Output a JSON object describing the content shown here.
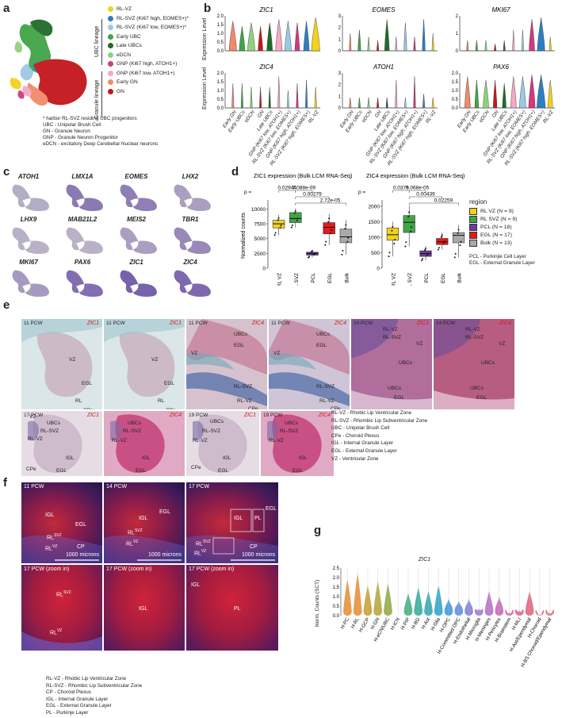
{
  "panels": {
    "a": "a",
    "b": "b",
    "c": "c",
    "d": "d",
    "e": "e",
    "f": "f",
    "g": "g"
  },
  "panel_a": {
    "lineage_ubc": "UBC lineage",
    "lineage_granule": "Granule lineage",
    "legend": [
      {
        "label": "RL-VZ",
        "color": "#f2d21b"
      },
      {
        "label": "RL-SVZ (Ki67 high, EOMES+)*",
        "color": "#2e7fbf"
      },
      {
        "label": "RL-SVZ (Ki67 low, EOMES+)*",
        "color": "#9cc8e6"
      },
      {
        "label": "Early UBC",
        "color": "#41a447"
      },
      {
        "label": "Late UBCs",
        "color": "#1e6b2a"
      },
      {
        "label": "eDCN",
        "color": "#8fd17e"
      },
      {
        "label": "GNP (Ki67 high, ATOH1+)",
        "color": "#d23a7a"
      },
      {
        "label": "GNP (Ki67 low, ATOH1+)",
        "color": "#f3a9c4"
      },
      {
        "label": "Early GN",
        "color": "#f08a6a"
      },
      {
        "label": "GN",
        "color": "#c4161c"
      }
    ],
    "notes": [
      "* harbor RL-SVZ residing UBC progenitors",
      "UBC - Unipolar Brush Cell",
      "GN - Granule Neuron",
      "GNP - Granule  Neuron Progenitor",
      "eDCN - excitatory Deep Cerebellar Nuclear neurons"
    ]
  },
  "panel_b": {
    "ylabel": "Expression Level",
    "genes": [
      "ZIC1",
      "EOMES",
      "MKI67",
      "ZIC4",
      "ATOH1",
      "PAX6"
    ],
    "y_ticks": {
      "ZIC1": [
        "2.0",
        "1.5",
        "1.0",
        "0.5",
        "0.0"
      ],
      "EOMES": [
        "3",
        "2",
        "1",
        "0"
      ],
      "MKI67": [
        "2",
        "1",
        "0"
      ],
      "ZIC4": [
        "2.0",
        "1.5",
        "1.0",
        "0.5",
        "0.0"
      ],
      "ATOH1": [
        "3",
        "2",
        "1",
        "0"
      ],
      "PAX6": [
        "2.0",
        "1.5",
        "1.0",
        "0.5",
        "0.0"
      ]
    },
    "categories": [
      "Early GN",
      "Early UBCs",
      "eDCN",
      "GN",
      "Late UBCs",
      "GNP (Ki67 low, ATOH1+)",
      "RL-SVZ (Ki67 low, EOMES+)",
      "GNP (Ki67 high, ATOH1+)",
      "RL-SVZ (Ki67 high, EOMES+)",
      "RL-VZ"
    ],
    "category_colors": [
      "#f08a6a",
      "#41a447",
      "#8fd17e",
      "#c4161c",
      "#1e6b2a",
      "#f3a9c4",
      "#9cc8e6",
      "#d23a7a",
      "#2e7fbf",
      "#f2d21b"
    ]
  },
  "panel_c": {
    "genes": [
      "ATOH1",
      "LMX1A",
      "EOMES",
      "LHX2",
      "LHX9",
      "MAB21L2",
      "MEIS2",
      "TBR1",
      "MKI67",
      "PAX6",
      "ZIC1",
      "ZIC4"
    ]
  },
  "chart_data": [
    {
      "type": "box",
      "title": "ZIC1 expression (Bulk LCM RNA-Seq)",
      "ylabel": "Normalized counts",
      "ylim": [
        0,
        11000
      ],
      "y_ticks": [
        "10000",
        "7500",
        "5000",
        "2500",
        "0"
      ],
      "categories": [
        "RL VZ",
        "RL SVZ",
        "PCL",
        "EGL",
        "Bulk"
      ],
      "colors": [
        "#f2d21b",
        "#41a447",
        "#6a3d9a",
        "#e31a1c",
        "#aaaaaa"
      ],
      "boxes": [
        {
          "q1": 6800,
          "median": 7500,
          "q3": 8100,
          "min": 5600,
          "max": 9000
        },
        {
          "q1": 7700,
          "median": 8400,
          "q3": 9400,
          "min": 6900,
          "max": 10100
        },
        {
          "q1": 2200,
          "median": 2500,
          "q3": 2700,
          "min": 1800,
          "max": 3100
        },
        {
          "q1": 5800,
          "median": 6900,
          "q3": 7700,
          "min": 3900,
          "max": 9200
        },
        {
          "q1": 4300,
          "median": 5300,
          "q3": 6600,
          "min": 2300,
          "max": 8200
        }
      ],
      "pvalues": [
        "p =",
        "0.02944",
        "7.088e-09",
        "0.00279",
        "2.72e-05"
      ]
    },
    {
      "type": "box",
      "title": "ZIC4 expression (Bulk LCM RNA-Seq)",
      "ylim": [
        0,
        2100
      ],
      "y_ticks": [
        "2000",
        "1500",
        "1000",
        "500",
        "0"
      ],
      "categories": [
        "RL VZ",
        "RL SVZ",
        "PCL",
        "EGL",
        "Bulk"
      ],
      "colors": [
        "#f2d21b",
        "#41a447",
        "#6a3d9a",
        "#e31a1c",
        "#aaaaaa"
      ],
      "boxes": [
        {
          "q1": 900,
          "median": 1080,
          "q3": 1300,
          "min": 380,
          "max": 1500
        },
        {
          "q1": 1150,
          "median": 1480,
          "q3": 1700,
          "min": 700,
          "max": 2000
        },
        {
          "q1": 380,
          "median": 470,
          "q3": 560,
          "min": 250,
          "max": 700
        },
        {
          "q1": 760,
          "median": 850,
          "q3": 960,
          "min": 600,
          "max": 1150
        },
        {
          "q1": 820,
          "median": 1060,
          "q3": 1150,
          "min": 350,
          "max": 1400
        }
      ],
      "pvalues": [
        "p =",
        "0.0376",
        "9.068e-05",
        "0.00439",
        "0.02259"
      ]
    }
  ],
  "panel_d_legend": {
    "title": "region",
    "items": [
      {
        "label": "RL VZ (N = 9)",
        "color": "#f2d21b"
      },
      {
        "label": "RL SVZ (N = 9)",
        "color": "#41a447"
      },
      {
        "label": "PCL (N = 18)",
        "color": "#6a3d9a"
      },
      {
        "label": "EGL (N = 17)",
        "color": "#e31a1c"
      },
      {
        "label": "Bulk (N = 13)",
        "color": "#aaaaaa"
      }
    ],
    "notes": [
      "PCL - Purkinjie Cell Layer",
      "EGL - External Granule Layer"
    ]
  },
  "panel_e": {
    "row1": [
      {
        "pcw": "11 PCW",
        "gene": "ZIC1",
        "labels": [
          "VZ",
          "EGL",
          "RL",
          "CPe"
        ]
      },
      {
        "pcw": "11 PCW",
        "gene": "ZIC1",
        "labels": [
          "VZ",
          "EGL",
          "RL",
          "CPe"
        ]
      },
      {
        "pcw": "11 PCW",
        "gene": "ZIC4",
        "labels": [
          "UBCs",
          "EGL",
          "VZ",
          "RL-SVZ",
          "RL-VZ",
          "CPe"
        ]
      },
      {
        "pcw": "11 PCW",
        "gene": "ZIC4",
        "labels": [
          "UBCs",
          "EGL",
          "VZ",
          "RL-SVZ",
          "RL-VZ",
          "CPe"
        ]
      },
      {
        "pcw": "14 PCW",
        "gene": "ZIC1",
        "labels": [
          "RL-VZ",
          "RL-SVZ",
          "VZ",
          "UBCs",
          "UBCs",
          "EGL"
        ]
      },
      {
        "pcw": "14 PCW",
        "gene": "ZIC4",
        "labels": [
          "RL-VZ",
          "RL-SVZ",
          "VZ",
          "UBCs",
          "UBCs",
          "EGL"
        ]
      }
    ],
    "row2": [
      {
        "pcw": "17 PCW",
        "gene": "ZIC1",
        "labels": [
          "VZ",
          "UBCs",
          "RL-SVZ",
          "RL-VZ",
          "IGL",
          "CPe",
          "EGL"
        ]
      },
      {
        "pcw": "",
        "gene": "ZIC4",
        "labels": [
          "UBCs",
          "RL-SVZ",
          "RL-VZ",
          "IGL",
          "EGL"
        ]
      },
      {
        "pcw": "19 PCW",
        "gene": "ZIC1",
        "labels": [
          "UBCs",
          "RL-SVZ",
          "RL-VZ",
          "IGL",
          "CPe",
          "EGL"
        ]
      },
      {
        "pcw": "19 PCW",
        "gene": "ZIC4",
        "labels": [
          "UBCs",
          "RL-SVZ",
          "RL-VZ",
          "IGL",
          "EGL"
        ]
      }
    ],
    "notes": [
      "RL-VZ - Rhobic Lip Ventricular Zone",
      "RL-SVZ - Rhombic Lip Subventricular Zone",
      "UBC - Unipolar Brush Cell",
      "CPe - Choroid Plexus",
      "IGL - Internal Granule Layer",
      "EGL - External Granule Layer",
      "VZ - Ventricular Zone"
    ]
  },
  "panel_f": {
    "top": [
      {
        "pcw": "11 PCW",
        "scale": "1000 microns"
      },
      {
        "pcw": "14 PCW",
        "scale": "1000 microns"
      },
      {
        "pcw": "17 PCW",
        "scale": "1000 microns"
      }
    ],
    "bottom": [
      {
        "pcw": "17 PCW (zoom in)"
      },
      {
        "pcw": "17 PCW (zoom in)"
      },
      {
        "pcw": "17 PCW (zoom in)"
      }
    ],
    "region_labels": {
      "igl": "IGL",
      "egl": "EGL",
      "cp": "CP",
      "pl": "PL",
      "rl": "RL",
      "svz": "SVZ",
      "vz": "VZ"
    },
    "notes": [
      "RL-VZ - Rhobic Lip Ventricular Zone",
      "RL-SVZ - Rhombic Lip Subventricular Zone",
      "CP - Choroid Plexus",
      "IGL - Internal Granule Layer",
      "EGL - External Granule Layer",
      "PL - Purkinje Layer"
    ]
  },
  "panel_g": {
    "title": "ZIC1",
    "ylabel": "Norm. Counts (SCT)",
    "y_ticks": [
      "2.5",
      "2.0",
      "1.5",
      "1.0",
      "0.5",
      "0.0"
    ],
    "categories": [
      "H-PC",
      "H-RL",
      "H-GCP",
      "H-GN",
      "H-eCN/UBC",
      "H-iCN",
      "H-PIP",
      "H-BG",
      "H-Ast",
      "H-Glia",
      "H-OPC",
      "H-Committed OPC",
      "H-Endothelial",
      "H-Microglia",
      "H-Meninges",
      "H-Pericytes",
      "H-Brainstem",
      "H-MLI",
      "H-Ast/Ependymal",
      "H-Choroid",
      "H-BS Choroid/Ependymal"
    ],
    "colors": [
      "#e8882a",
      "#e8882a",
      "#c79a2a",
      "#b0a232",
      "#8ca53a",
      "#5caa52",
      "#3aab7a",
      "#2aa896",
      "#2aa4b0",
      "#2a9ec8",
      "#3a94d8",
      "#5a88dc",
      "#7a7cd8",
      "#9a72d0",
      "#b068c4",
      "#c462b4",
      "#d05e9e",
      "#d85c88",
      "#e05e74",
      "#e0626a",
      "#e06a62"
    ],
    "heights": [
      1.9,
      2.2,
      1.6,
      1.8,
      1.7,
      0,
      1.2,
      1.5,
      1.3,
      1.6,
      0.9,
      0.8,
      0.9,
      0.4,
      1.3,
      1.0,
      0.2,
      0.3,
      1.3,
      0.1,
      0.2
    ]
  }
}
